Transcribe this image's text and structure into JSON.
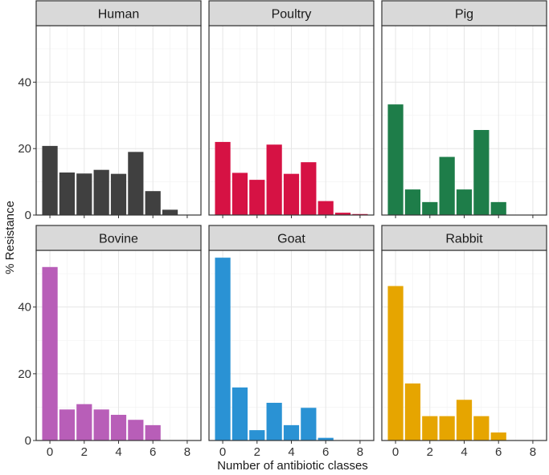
{
  "chart_data": {
    "type": "bar",
    "title": "",
    "xlabel": "Number of antibiotic classes",
    "ylabel": "% Resistance",
    "xlim": [
      -0.8,
      8.8
    ],
    "ylim": [
      0,
      57
    ],
    "x_ticks": [
      0,
      2,
      4,
      6,
      8
    ],
    "y_ticks": [
      0,
      20,
      40
    ],
    "categories": [
      0,
      1,
      2,
      3,
      4,
      5,
      6,
      7,
      8
    ],
    "panels": [
      {
        "name": "Human",
        "color": "#404040",
        "values": [
          20.8,
          12.8,
          12.5,
          13.6,
          12.4,
          19.0,
          7.2,
          1.6,
          0
        ]
      },
      {
        "name": "Poultry",
        "color": "#D61244",
        "values": [
          22.0,
          12.7,
          10.6,
          21.2,
          12.4,
          15.9,
          4.2,
          0.7,
          0.3
        ]
      },
      {
        "name": "Pig",
        "color": "#1E7D49",
        "values": [
          33.3,
          7.7,
          3.9,
          17.5,
          7.7,
          25.6,
          3.9,
          0,
          0
        ]
      },
      {
        "name": "Bovine",
        "color": "#B85EB8",
        "values": [
          52.0,
          9.3,
          10.9,
          9.3,
          7.7,
          6.2,
          4.6,
          0,
          0
        ]
      },
      {
        "name": "Goat",
        "color": "#2A92D4",
        "values": [
          54.8,
          15.9,
          3.1,
          11.3,
          4.6,
          9.8,
          0.8,
          0,
          0
        ]
      },
      {
        "name": "Rabbit",
        "color": "#E6A500",
        "values": [
          46.3,
          17.1,
          7.3,
          7.3,
          12.2,
          7.3,
          2.4,
          0,
          0
        ]
      }
    ]
  }
}
